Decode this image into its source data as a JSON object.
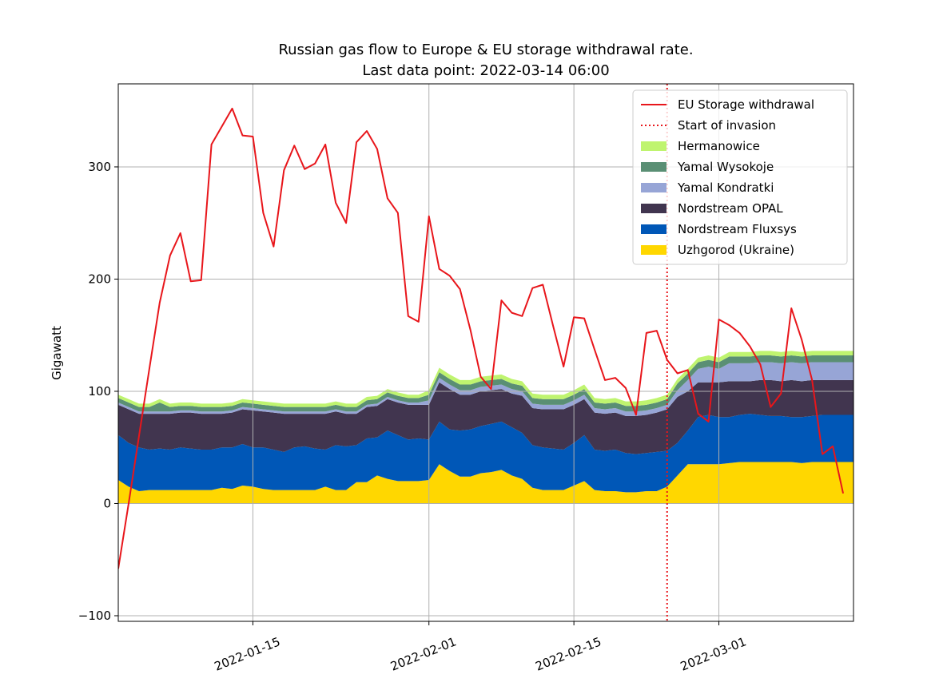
{
  "chart_data": {
    "type": "area",
    "title": "Russian gas flow to Europe & EU storage withdrawal rate.",
    "subtitle": "Last data point: 2022-03-14 06:00",
    "ylabel": "Gigawatt",
    "x": [
      "2022-01-02",
      "2022-01-03",
      "2022-01-04",
      "2022-01-05",
      "2022-01-06",
      "2022-01-07",
      "2022-01-08",
      "2022-01-09",
      "2022-01-10",
      "2022-01-11",
      "2022-01-12",
      "2022-01-13",
      "2022-01-14",
      "2022-01-15",
      "2022-01-16",
      "2022-01-17",
      "2022-01-18",
      "2022-01-19",
      "2022-01-20",
      "2022-01-21",
      "2022-01-22",
      "2022-01-23",
      "2022-01-24",
      "2022-01-25",
      "2022-01-26",
      "2022-01-27",
      "2022-01-28",
      "2022-01-29",
      "2022-01-30",
      "2022-01-31",
      "2022-02-01",
      "2022-02-02",
      "2022-02-03",
      "2022-02-04",
      "2022-02-05",
      "2022-02-06",
      "2022-02-07",
      "2022-02-08",
      "2022-02-09",
      "2022-02-10",
      "2022-02-11",
      "2022-02-12",
      "2022-02-13",
      "2022-02-14",
      "2022-02-15",
      "2022-02-16",
      "2022-02-17",
      "2022-02-18",
      "2022-02-19",
      "2022-02-20",
      "2022-02-21",
      "2022-02-22",
      "2022-02-23",
      "2022-02-24",
      "2022-02-25",
      "2022-02-26",
      "2022-02-27",
      "2022-02-28",
      "2022-03-01",
      "2022-03-02",
      "2022-03-03",
      "2022-03-04",
      "2022-03-05",
      "2022-03-06",
      "2022-03-07",
      "2022-03-08",
      "2022-03-09",
      "2022-03-10",
      "2022-03-11",
      "2022-03-12",
      "2022-03-13",
      "2022-03-14"
    ],
    "series": [
      {
        "name": "EU Storage withdrawal",
        "type": "line",
        "color": "#e8161b",
        "values": [
          -58,
          0,
          60,
          120,
          179,
          221,
          241,
          198,
          199,
          320,
          336,
          352,
          328,
          327,
          259,
          229,
          297,
          319,
          298,
          303,
          320,
          268,
          250,
          322,
          332,
          316,
          272,
          259,
          167,
          162,
          256,
          209,
          203,
          191,
          155,
          113,
          102,
          181,
          170,
          167,
          192,
          195,
          158,
          122,
          166,
          165,
          137,
          110,
          112,
          103,
          79,
          152,
          154,
          128,
          116,
          119,
          80,
          73,
          164,
          159,
          152,
          140,
          124,
          86,
          98,
          174,
          146,
          110,
          44,
          51,
          9,
          null
        ]
      },
      {
        "name": "Uzhgorod (Ukraine)",
        "type": "area",
        "color": "#ffd700",
        "values": [
          21,
          15,
          11,
          12,
          12,
          12,
          12,
          12,
          12,
          12,
          14,
          13,
          16,
          15,
          13,
          12,
          12,
          12,
          12,
          12,
          15,
          12,
          12,
          19,
          19,
          25,
          22,
          20,
          20,
          20,
          21,
          35,
          29,
          24,
          24,
          27,
          28,
          30,
          25,
          22,
          14,
          12,
          12,
          12,
          16,
          20,
          12,
          11,
          11,
          10,
          10,
          11,
          11,
          15,
          25,
          35,
          35,
          35,
          35,
          36,
          37,
          37,
          37,
          37,
          37,
          37,
          36,
          37,
          37,
          37,
          37,
          37
        ]
      },
      {
        "name": "Nordstream Fluxsys",
        "type": "area",
        "color": "#0057b7",
        "values": [
          40,
          39,
          39,
          36,
          37,
          36,
          38,
          37,
          36,
          36,
          36,
          37,
          37,
          35,
          37,
          36,
          34,
          38,
          39,
          37,
          33,
          40,
          39,
          33,
          39,
          34,
          43,
          41,
          37,
          38,
          36,
          38,
          37,
          41,
          42,
          42,
          43,
          43,
          43,
          41,
          38,
          38,
          37,
          36,
          38,
          41,
          36,
          36,
          37,
          35,
          34,
          34,
          35,
          32,
          29,
          30,
          42,
          44,
          42,
          41,
          42,
          43,
          42,
          41,
          41,
          40,
          41,
          41,
          42,
          42,
          42,
          42
        ]
      },
      {
        "name": "Nordstream OPAL",
        "type": "area",
        "color": "#41354f",
        "values": [
          27,
          30,
          30,
          32,
          31,
          32,
          31,
          32,
          32,
          32,
          30,
          31,
          31,
          33,
          32,
          33,
          34,
          30,
          29,
          31,
          32,
          30,
          29,
          28,
          28,
          28,
          28,
          29,
          31,
          30,
          31,
          35,
          36,
          32,
          31,
          31,
          30,
          29,
          30,
          33,
          33,
          34,
          35,
          36,
          34,
          32,
          33,
          33,
          33,
          33,
          34,
          34,
          35,
          37,
          41,
          35,
          31,
          29,
          31,
          32,
          30,
          29,
          31,
          32,
          31,
          33,
          32,
          32,
          31,
          31,
          31,
          31
        ]
      },
      {
        "name": "Yamal Kondratki",
        "type": "area",
        "color": "#97a5d6",
        "values": [
          2,
          2,
          2,
          2,
          2,
          2,
          2,
          2,
          2,
          2,
          2,
          2,
          2,
          2,
          2,
          2,
          2,
          2,
          2,
          2,
          2,
          2,
          2,
          2,
          2,
          2,
          2,
          2,
          2,
          2,
          4,
          4,
          4,
          4,
          4,
          4,
          4,
          4,
          4,
          4,
          4,
          4,
          4,
          4,
          4,
          4,
          4,
          4,
          4,
          4,
          4,
          4,
          4,
          4,
          6,
          10,
          12,
          14,
          12,
          16,
          16,
          16,
          16,
          16,
          16,
          16,
          16,
          16,
          16,
          16,
          16,
          16
        ]
      },
      {
        "name": "Yamal Wysokoje",
        "type": "area",
        "color": "#5a8f74",
        "values": [
          4,
          4,
          4,
          4,
          8,
          4,
          4,
          4,
          4,
          4,
          4,
          4,
          4,
          4,
          4,
          4,
          4,
          4,
          4,
          4,
          4,
          4,
          4,
          4,
          4,
          4,
          4,
          4,
          4,
          4,
          5,
          5,
          5,
          5,
          5,
          5,
          5,
          5,
          5,
          5,
          5,
          5,
          5,
          5,
          5,
          5,
          5,
          5,
          5,
          5,
          5,
          5,
          5,
          5,
          6,
          6,
          6,
          6,
          6,
          6,
          6,
          6,
          6,
          6,
          6,
          6,
          6,
          6,
          6,
          6,
          6,
          6
        ]
      },
      {
        "name": "Hermanowice",
        "type": "area",
        "color": "#bff46f",
        "values": [
          3,
          3,
          3,
          3,
          3,
          3,
          3,
          3,
          3,
          3,
          3,
          3,
          3,
          3,
          3,
          3,
          3,
          3,
          3,
          3,
          3,
          3,
          3,
          3,
          3,
          3,
          3,
          3,
          3,
          3,
          4,
          4,
          4,
          4,
          4,
          4,
          4,
          4,
          4,
          4,
          4,
          4,
          4,
          4,
          4,
          4,
          4,
          4,
          4,
          4,
          4,
          4,
          4,
          4,
          4,
          4,
          4,
          4,
          4,
          4,
          4,
          4,
          4,
          4,
          4,
          4,
          4,
          4,
          4,
          4,
          4,
          4
        ]
      }
    ],
    "invasion": {
      "name": "Start of invasion",
      "x": "2022-02-24",
      "color": "#e8161b"
    },
    "xlim": [
      "2022-01-02",
      "2022-03-14"
    ],
    "xticks": [
      "2022-01-15",
      "2022-02-01",
      "2022-02-15",
      "2022-03-01"
    ],
    "ylim": [
      -105,
      374
    ],
    "yticks": [
      {
        "value": -100,
        "label": "−100"
      },
      0,
      100,
      200,
      300
    ],
    "grid": true,
    "legend": "upper right"
  }
}
